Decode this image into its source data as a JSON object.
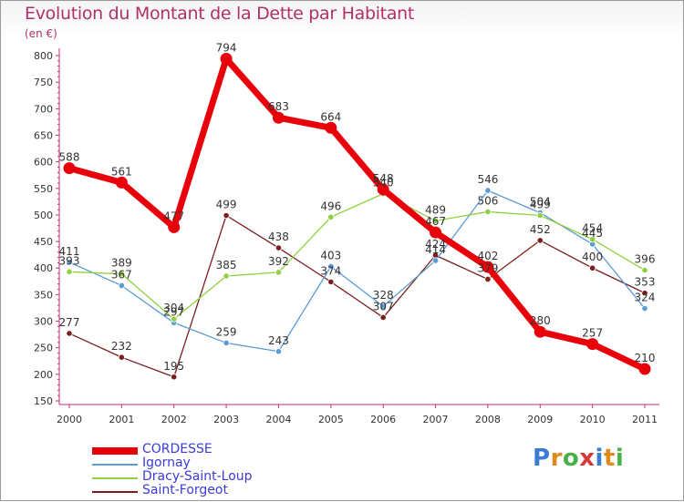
{
  "title": "Evolution du Montant de la Dette par Habitant",
  "unit": "(en €)",
  "logo": {
    "text": "Proxiti",
    "letters": [
      "P",
      "r",
      "o",
      "x",
      "i",
      "t",
      "i"
    ],
    "colors": [
      "#3a7bd5",
      "#e08a1e",
      "#4ab04a",
      "#d43a3a",
      "#3a7bd5",
      "#e08a1e",
      "#4ab04a"
    ]
  },
  "chart_data": {
    "type": "line",
    "title": "Evolution du Montant de la Dette par Habitant",
    "ylabel": "(en €)",
    "xlabel": "",
    "ylim": [
      150,
      800
    ],
    "yticks": [
      150,
      200,
      250,
      300,
      350,
      400,
      450,
      500,
      550,
      600,
      650,
      700,
      750,
      800
    ],
    "categories": [
      "2000",
      "2001",
      "2002",
      "2003",
      "2004",
      "2005",
      "2006",
      "2007",
      "2008",
      "2009",
      "2010",
      "2011"
    ],
    "grid": false,
    "legend": "bottom-left",
    "series": [
      {
        "name": "CORDESSE",
        "color": "#e8000b",
        "values": [
          588,
          561,
          477,
          794,
          683,
          664,
          548,
          467,
          402,
          280,
          257,
          210
        ],
        "labels": [
          "588",
          "561",
          "477",
          "794",
          "683",
          "664",
          "548",
          "467",
          "402",
          "280",
          "257",
          "210"
        ]
      },
      {
        "name": "Igornay",
        "color": "#5b9bd5",
        "values": [
          411,
          367,
          297,
          259,
          243,
          403,
          328,
          414,
          546,
          504,
          445,
          324
        ],
        "labels": [
          "411",
          "367",
          "297",
          "259",
          "243",
          "403",
          "328",
          "414",
          "546",
          "504",
          "445",
          "324"
        ]
      },
      {
        "name": "Dracy-Saint-Loup",
        "color": "#8fd13f",
        "values": [
          393,
          389,
          304,
          385,
          392,
          496,
          540,
          489,
          506,
          499,
          454,
          396
        ],
        "labels": [
          "393",
          "389",
          "304",
          "385",
          "392",
          "496",
          "540",
          "489",
          "506",
          "499",
          "454",
          "396"
        ]
      },
      {
        "name": "Saint-Forgeot",
        "color": "#7a1e1e",
        "values": [
          277,
          232,
          195,
          499,
          438,
          374,
          307,
          424,
          379,
          452,
          400,
          353
        ],
        "labels": [
          "277",
          "232",
          "195",
          "499",
          "438",
          "374",
          "307",
          "424",
          "379",
          "452",
          "400",
          "353"
        ]
      }
    ]
  }
}
